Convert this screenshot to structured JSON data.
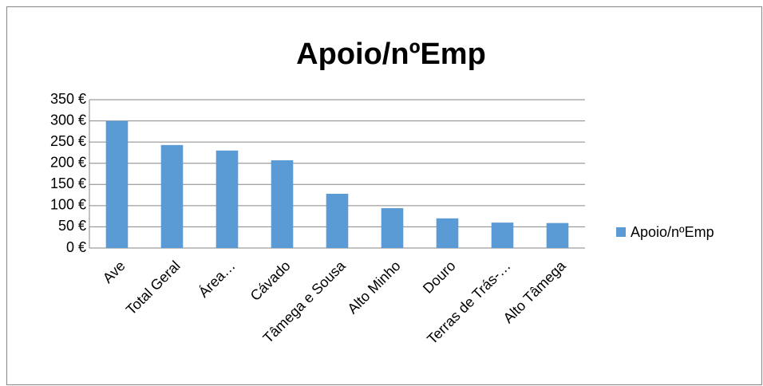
{
  "chart_data": {
    "type": "bar",
    "title": "Apoio/nºEmp",
    "categories": [
      "Ave",
      "Total Geral",
      "Área…",
      "Cávado",
      "Tâmega e Sousa",
      "Alto Minho",
      "Douro",
      "Terras de Trás-…",
      "Alto Tâmega"
    ],
    "series": [
      {
        "name": "Apoio/nºEmp",
        "color": "#5b9bd5",
        "values": [
          300,
          243,
          230,
          207,
          128,
          94,
          70,
          60,
          59
        ]
      }
    ],
    "ylim": [
      0,
      350
    ],
    "yticks": [
      {
        "value": 0,
        "label": "0 €"
      },
      {
        "value": 50,
        "label": "50 €"
      },
      {
        "value": 100,
        "label": "100 €"
      },
      {
        "value": 150,
        "label": "150 €"
      },
      {
        "value": 200,
        "label": "200 €"
      },
      {
        "value": 250,
        "label": "250 €"
      },
      {
        "value": 300,
        "label": "300 €"
      },
      {
        "value": 350,
        "label": "350 €"
      }
    ],
    "grid": true,
    "legend": "right"
  }
}
